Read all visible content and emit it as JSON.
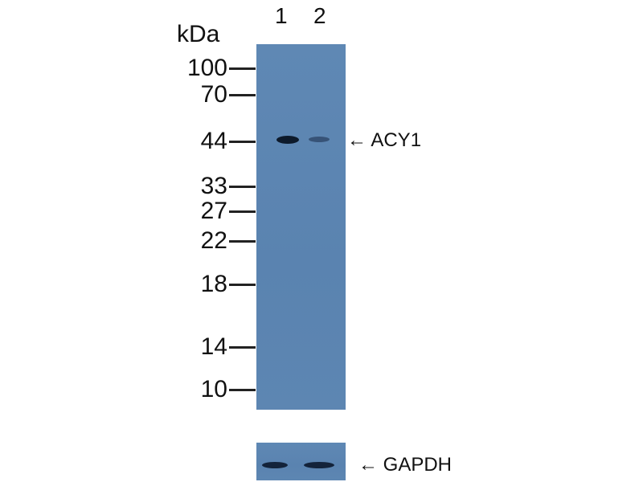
{
  "unit_label": "kDa",
  "lanes": [
    "1",
    "2"
  ],
  "markers": [
    "100",
    "70",
    "44",
    "33",
    "27",
    "22",
    "18",
    "14",
    "10"
  ],
  "target_label": "← ACY1",
  "loading_control_label": "← GAPDH",
  "colors": {
    "membrane": "#5b84b0",
    "band": "#0d1a2b"
  }
}
